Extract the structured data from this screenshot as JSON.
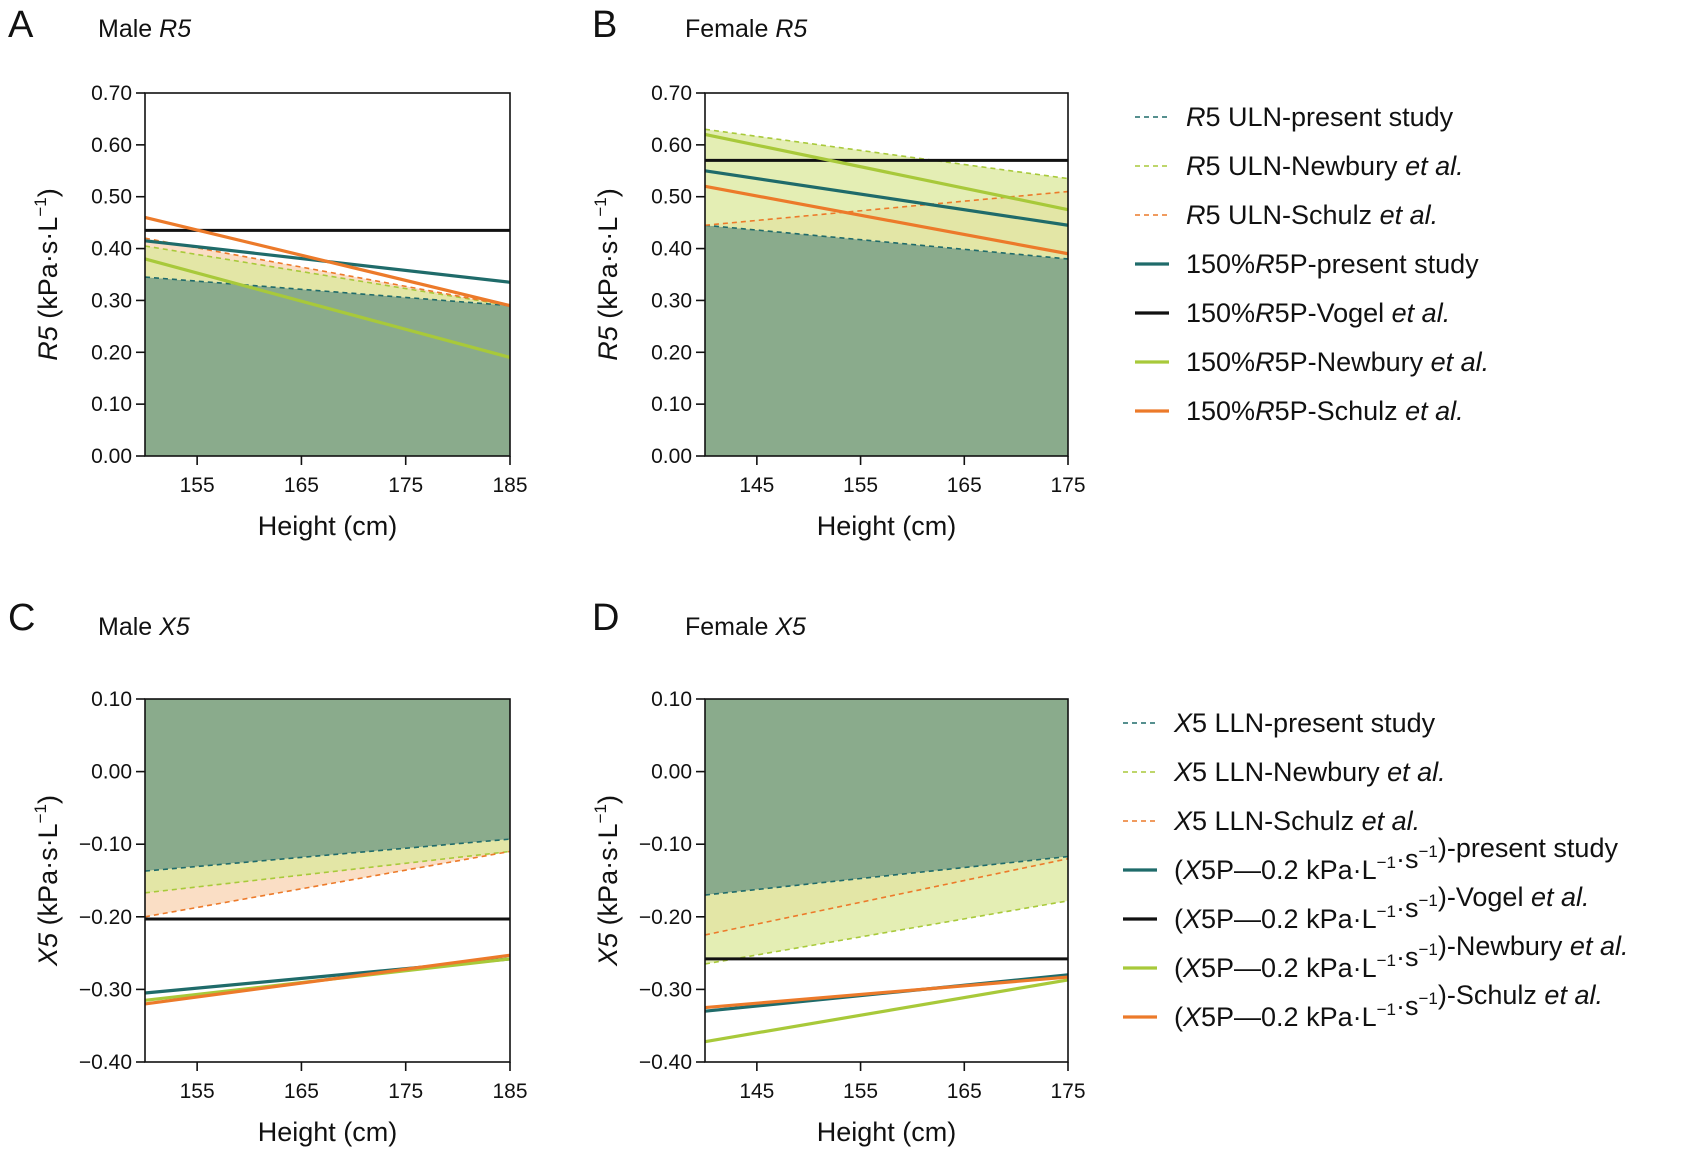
{
  "colors": {
    "area": "#8aab8c",
    "present": "#1f6b6a",
    "vogel": "#111111",
    "newbury": "#a8c93a",
    "schulz": "#ec7a2a",
    "newbury_fill": "#dbe89b",
    "schulz_fill": "#f8d3b2"
  },
  "chart_data": [
    {
      "panel": "A",
      "type": "line",
      "title_prefix": "Male ",
      "title_var": "R5",
      "xlabel": "Height (cm)",
      "ylabel_var": "R5",
      "ylabel_unit": " (kPa·s·L",
      "ylabel_sup": "−1",
      "ylabel_close": ")",
      "xlim": [
        150,
        185
      ],
      "ylim": [
        0,
        0.7
      ],
      "xticks": [
        155,
        165,
        175,
        185
      ],
      "yticks": [
        0,
        0.1,
        0.2,
        0.3,
        0.4,
        0.5,
        0.6,
        0.7
      ],
      "ytick_labels": [
        "0.00",
        "0.10",
        "0.20",
        "0.30",
        "0.40",
        "0.50",
        "0.60",
        "0.70"
      ],
      "ytick_decimals": 2,
      "fill_side": "below",
      "series": [
        {
          "key": "uln_present",
          "style": "dashed",
          "color": "present",
          "x": [
            150,
            185
          ],
          "y": [
            0.345,
            0.29
          ]
        },
        {
          "key": "uln_newbury",
          "style": "dashed",
          "color": "newbury",
          "x": [
            150,
            185
          ],
          "y": [
            0.405,
            0.29
          ]
        },
        {
          "key": "uln_schulz",
          "style": "dashed",
          "color": "schulz",
          "x": [
            150,
            185
          ],
          "y": [
            0.42,
            0.29
          ]
        },
        {
          "key": "p_present",
          "style": "solid",
          "color": "present",
          "x": [
            150,
            185
          ],
          "y": [
            0.415,
            0.335
          ]
        },
        {
          "key": "p_vogel",
          "style": "solid",
          "color": "vogel",
          "x": [
            150,
            185
          ],
          "y": [
            0.435,
            0.435
          ]
        },
        {
          "key": "p_newbury",
          "style": "solid",
          "color": "newbury",
          "x": [
            150,
            185
          ],
          "y": [
            0.38,
            0.19
          ]
        },
        {
          "key": "p_schulz",
          "style": "solid",
          "color": "schulz",
          "x": [
            150,
            185
          ],
          "y": [
            0.46,
            0.29
          ]
        }
      ]
    },
    {
      "panel": "B",
      "type": "line",
      "title_prefix": "Female ",
      "title_var": "R5",
      "xlabel": "Height (cm)",
      "ylabel_var": "R5",
      "ylabel_unit": " (kPa·s·L",
      "ylabel_sup": "−1",
      "ylabel_close": ")",
      "xlim": [
        140,
        175
      ],
      "ylim": [
        0,
        0.7
      ],
      "xticks": [
        145,
        155,
        165,
        175
      ],
      "yticks": [
        0,
        0.1,
        0.2,
        0.3,
        0.4,
        0.5,
        0.6,
        0.7
      ],
      "ytick_labels": [
        "0.00",
        "0.10",
        "0.20",
        "0.30",
        "0.40",
        "0.50",
        "0.60",
        "0.70"
      ],
      "ytick_decimals": 2,
      "fill_side": "below",
      "series": [
        {
          "key": "uln_present",
          "style": "dashed",
          "color": "present",
          "x": [
            140,
            175
          ],
          "y": [
            0.445,
            0.38
          ]
        },
        {
          "key": "uln_newbury",
          "style": "dashed",
          "color": "newbury",
          "x": [
            140,
            175
          ],
          "y": [
            0.63,
            0.535
          ]
        },
        {
          "key": "uln_schulz",
          "style": "dashed",
          "color": "schulz",
          "x": [
            140,
            175
          ],
          "y": [
            0.445,
            0.51
          ]
        },
        {
          "key": "p_present",
          "style": "solid",
          "color": "present",
          "x": [
            140,
            175
          ],
          "y": [
            0.55,
            0.445
          ]
        },
        {
          "key": "p_vogel",
          "style": "solid",
          "color": "vogel",
          "x": [
            140,
            175
          ],
          "y": [
            0.57,
            0.57
          ]
        },
        {
          "key": "p_newbury",
          "style": "solid",
          "color": "newbury",
          "x": [
            140,
            175
          ],
          "y": [
            0.62,
            0.475
          ]
        },
        {
          "key": "p_schulz",
          "style": "solid",
          "color": "schulz",
          "x": [
            140,
            175
          ],
          "y": [
            0.52,
            0.39
          ]
        }
      ]
    },
    {
      "panel": "C",
      "type": "line",
      "title_prefix": "Male ",
      "title_var": "X5",
      "xlabel": "Height (cm)",
      "ylabel_var": "X5",
      "ylabel_unit": " (kPa·s·L",
      "ylabel_sup": "−1",
      "ylabel_close": ")",
      "xlim": [
        150,
        185
      ],
      "ylim": [
        -0.4,
        0.1
      ],
      "xticks": [
        155,
        165,
        175,
        185
      ],
      "yticks": [
        -0.4,
        -0.3,
        -0.2,
        -0.1,
        0,
        0.1
      ],
      "ytick_labels": [
        "−0.40",
        "−0.30",
        "−0.20",
        "−0.10",
        "0.00",
        "0.10"
      ],
      "ytick_decimals": 2,
      "fill_side": "above",
      "series": [
        {
          "key": "lln_present",
          "style": "dashed",
          "color": "present",
          "x": [
            150,
            185
          ],
          "y": [
            -0.137,
            -0.093
          ]
        },
        {
          "key": "lln_newbury",
          "style": "dashed",
          "color": "newbury",
          "x": [
            150,
            185
          ],
          "y": [
            -0.167,
            -0.11
          ]
        },
        {
          "key": "lln_schulz",
          "style": "dashed",
          "color": "schulz",
          "x": [
            150,
            185
          ],
          "y": [
            -0.2,
            -0.11
          ]
        },
        {
          "key": "p_present",
          "style": "solid",
          "color": "present",
          "x": [
            150,
            185
          ],
          "y": [
            -0.305,
            -0.258
          ]
        },
        {
          "key": "p_vogel",
          "style": "solid",
          "color": "vogel",
          "x": [
            150,
            185
          ],
          "y": [
            -0.203,
            -0.203
          ]
        },
        {
          "key": "p_newbury",
          "style": "solid",
          "color": "newbury",
          "x": [
            150,
            185
          ],
          "y": [
            -0.315,
            -0.258
          ]
        },
        {
          "key": "p_schulz",
          "style": "solid",
          "color": "schulz",
          "x": [
            150,
            185
          ],
          "y": [
            -0.32,
            -0.253
          ]
        }
      ]
    },
    {
      "panel": "D",
      "type": "line",
      "title_prefix": "Female ",
      "title_var": "X5",
      "xlabel": "Height (cm)",
      "ylabel_var": "X5",
      "ylabel_unit": " (kPa·s·L",
      "ylabel_sup": "−1",
      "ylabel_close": ")",
      "xlim": [
        140,
        175
      ],
      "ylim": [
        -0.4,
        0.1
      ],
      "xticks": [
        145,
        155,
        165,
        175
      ],
      "yticks": [
        -0.4,
        -0.3,
        -0.2,
        -0.1,
        0,
        0.1
      ],
      "ytick_labels": [
        "−0.40",
        "−0.30",
        "−0.20",
        "−0.10",
        "0.00",
        "0.10"
      ],
      "ytick_decimals": 2,
      "fill_side": "above",
      "series": [
        {
          "key": "lln_present",
          "style": "dashed",
          "color": "present",
          "x": [
            140,
            175
          ],
          "y": [
            -0.17,
            -0.117
          ]
        },
        {
          "key": "lln_newbury",
          "style": "dashed",
          "color": "newbury",
          "x": [
            140,
            175
          ],
          "y": [
            -0.265,
            -0.178
          ]
        },
        {
          "key": "lln_schulz",
          "style": "dashed",
          "color": "schulz",
          "x": [
            140,
            175
          ],
          "y": [
            -0.225,
            -0.12
          ]
        },
        {
          "key": "p_present",
          "style": "solid",
          "color": "present",
          "x": [
            140,
            175
          ],
          "y": [
            -0.33,
            -0.28
          ]
        },
        {
          "key": "p_vogel",
          "style": "solid",
          "color": "vogel",
          "x": [
            140,
            175
          ],
          "y": [
            -0.258,
            -0.258
          ]
        },
        {
          "key": "p_newbury",
          "style": "solid",
          "color": "newbury",
          "x": [
            140,
            175
          ],
          "y": [
            -0.372,
            -0.287
          ]
        },
        {
          "key": "p_schulz",
          "style": "solid",
          "color": "schulz",
          "x": [
            140,
            175
          ],
          "y": [
            -0.325,
            -0.283
          ]
        }
      ]
    }
  ],
  "legends": [
    {
      "for_panels": [
        "A",
        "B"
      ],
      "items": [
        {
          "style": "dashed",
          "color": "present",
          "parts": [
            {
              "t": "R",
              "i": true
            },
            {
              "t": "5 ULN-present study"
            }
          ]
        },
        {
          "style": "dashed",
          "color": "newbury",
          "parts": [
            {
              "t": "R",
              "i": true
            },
            {
              "t": "5 ULN-Newbury "
            },
            {
              "t": "et al.",
              "i": true
            }
          ]
        },
        {
          "style": "dashed",
          "color": "schulz",
          "parts": [
            {
              "t": "R",
              "i": true
            },
            {
              "t": "5 ULN-Schulz "
            },
            {
              "t": "et al.",
              "i": true
            }
          ]
        },
        {
          "style": "solid",
          "color": "present",
          "parts": [
            {
              "t": "150%"
            },
            {
              "t": "R",
              "i": true
            },
            {
              "t": "5P-present study"
            }
          ]
        },
        {
          "style": "solid",
          "color": "vogel",
          "parts": [
            {
              "t": "150%"
            },
            {
              "t": "R",
              "i": true
            },
            {
              "t": "5P-Vogel "
            },
            {
              "t": "et al.",
              "i": true
            }
          ]
        },
        {
          "style": "solid",
          "color": "newbury",
          "parts": [
            {
              "t": "150%"
            },
            {
              "t": "R",
              "i": true
            },
            {
              "t": "5P-Newbury "
            },
            {
              "t": "et al.",
              "i": true
            }
          ]
        },
        {
          "style": "solid",
          "color": "schulz",
          "parts": [
            {
              "t": "150%"
            },
            {
              "t": "R",
              "i": true
            },
            {
              "t": "5P-Schulz "
            },
            {
              "t": "et al.",
              "i": true
            }
          ]
        }
      ]
    },
    {
      "for_panels": [
        "C",
        "D"
      ],
      "items": [
        {
          "style": "dashed",
          "color": "present",
          "parts": [
            {
              "t": "X",
              "i": true
            },
            {
              "t": "5 LLN-present study"
            }
          ]
        },
        {
          "style": "dashed",
          "color": "newbury",
          "parts": [
            {
              "t": "X",
              "i": true
            },
            {
              "t": "5 LLN-Newbury "
            },
            {
              "t": "et al.",
              "i": true
            }
          ]
        },
        {
          "style": "dashed",
          "color": "schulz",
          "parts": [
            {
              "t": "X",
              "i": true
            },
            {
              "t": "5 LLN-Schulz "
            },
            {
              "t": "et al.",
              "i": true
            }
          ]
        },
        {
          "style": "solid",
          "color": "present",
          "parts": [
            {
              "t": "("
            },
            {
              "t": "X",
              "i": true
            },
            {
              "t": "5P—0.2 kPa·L"
            },
            {
              "t": "−1",
              "sup": true
            },
            {
              "t": "·s"
            },
            {
              "t": "−1",
              "sup": true
            },
            {
              "t": ")-present study"
            }
          ]
        },
        {
          "style": "solid",
          "color": "vogel",
          "parts": [
            {
              "t": "("
            },
            {
              "t": "X",
              "i": true
            },
            {
              "t": "5P—0.2 kPa·L"
            },
            {
              "t": "−1",
              "sup": true
            },
            {
              "t": "·s"
            },
            {
              "t": "−1",
              "sup": true
            },
            {
              "t": ")-Vogel "
            },
            {
              "t": "et al.",
              "i": true
            }
          ]
        },
        {
          "style": "solid",
          "color": "newbury",
          "parts": [
            {
              "t": "("
            },
            {
              "t": "X",
              "i": true
            },
            {
              "t": "5P—0.2 kPa·L"
            },
            {
              "t": "−1",
              "sup": true
            },
            {
              "t": "·s"
            },
            {
              "t": "−1",
              "sup": true
            },
            {
              "t": ")-Newbury "
            },
            {
              "t": "et al.",
              "i": true
            }
          ]
        },
        {
          "style": "solid",
          "color": "schulz",
          "parts": [
            {
              "t": "("
            },
            {
              "t": "X",
              "i": true
            },
            {
              "t": "5P—0.2 kPa·L"
            },
            {
              "t": "−1",
              "sup": true
            },
            {
              "t": "·s"
            },
            {
              "t": "−1",
              "sup": true
            },
            {
              "t": ")-Schulz "
            },
            {
              "t": "et al.",
              "i": true
            }
          ]
        }
      ]
    }
  ]
}
